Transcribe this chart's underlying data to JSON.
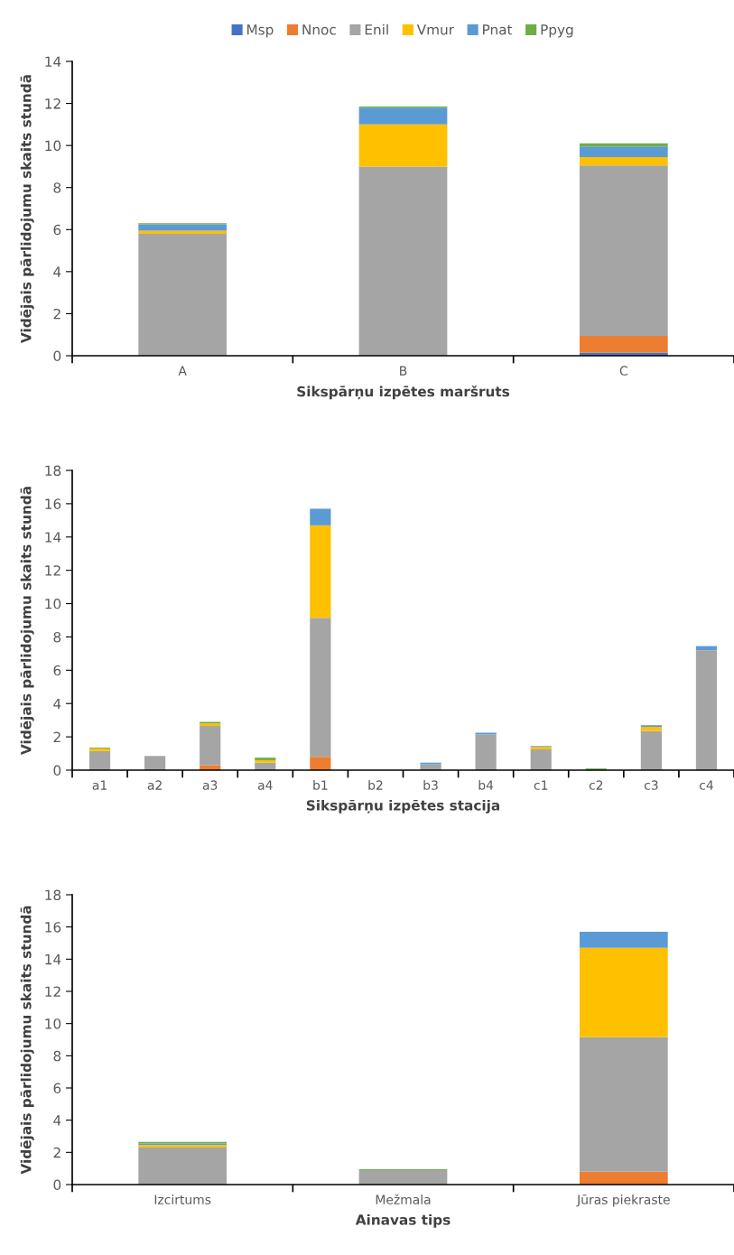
{
  "chart_data": [
    {
      "type": "bar",
      "stacked": true,
      "legend": "top",
      "grid": false,
      "ylabel": "Vidējais pārlidojumu skaits stundā",
      "xlabel": "Sikspārņu izpētes maršruts",
      "categories": [
        "A",
        "B",
        "C"
      ],
      "ylim": [
        0,
        14
      ],
      "yticks": [
        0,
        2,
        4,
        6,
        8,
        10,
        12,
        14
      ],
      "series": [
        {
          "name": "Msp",
          "color": "#4472c4",
          "values": [
            0,
            0,
            0.15
          ]
        },
        {
          "name": "Nnoc",
          "color": "#ed7d31",
          "values": [
            0,
            0,
            0.8
          ]
        },
        {
          "name": "Enil",
          "color": "#a5a5a5",
          "values": [
            5.8,
            9.0,
            8.1
          ]
        },
        {
          "name": "Vmur",
          "color": "#ffc000",
          "values": [
            0.15,
            2.0,
            0.4
          ]
        },
        {
          "name": "Pnat",
          "color": "#5b9bd5",
          "values": [
            0.3,
            0.8,
            0.5
          ]
        },
        {
          "name": "Ppyg",
          "color": "#70ad47",
          "values": [
            0.05,
            0.05,
            0.15
          ]
        }
      ]
    },
    {
      "type": "bar",
      "stacked": true,
      "grid": false,
      "ylabel": "Vidējais pārlidojumu skaits stundā",
      "xlabel": "Sikspārņu izpētes stacija",
      "categories": [
        "a1",
        "a2",
        "a3",
        "a4",
        "b1",
        "b2",
        "b3",
        "b4",
        "c1",
        "c2",
        "c3",
        "c4"
      ],
      "ylim": [
        0,
        18
      ],
      "yticks": [
        0,
        2,
        4,
        6,
        8,
        10,
        12,
        14,
        16,
        18
      ],
      "series": [
        {
          "color": "#4472c4",
          "values": [
            0,
            0,
            0,
            0,
            0,
            0,
            0,
            0,
            0,
            0,
            0,
            0
          ]
        },
        {
          "color": "#ed7d31",
          "values": [
            0,
            0,
            0.3,
            0,
            0.8,
            0,
            0,
            0,
            0,
            0,
            0,
            0
          ]
        },
        {
          "color": "#a5a5a5",
          "values": [
            1.15,
            0.85,
            2.35,
            0.45,
            8.35,
            0,
            0.35,
            2.15,
            1.25,
            0,
            2.35,
            7.2
          ]
        },
        {
          "color": "#ffc000",
          "values": [
            0.15,
            0,
            0.15,
            0.15,
            5.55,
            0,
            0,
            0,
            0.15,
            0,
            0.25,
            0
          ]
        },
        {
          "color": "#5b9bd5",
          "values": [
            0,
            0,
            0,
            0,
            1.0,
            0,
            0.1,
            0.1,
            0.05,
            0,
            0.1,
            0.25
          ]
        },
        {
          "color": "#70ad47",
          "values": [
            0.05,
            0,
            0.1,
            0.15,
            0,
            0,
            0,
            0,
            0,
            0.1,
            0,
            0
          ]
        }
      ]
    },
    {
      "type": "bar",
      "stacked": true,
      "grid": false,
      "ylabel": "Vidējais pārlidojumu skaits stundā",
      "xlabel": "Ainavas tips",
      "categories": [
        "Izcirtums",
        "Mežmala",
        "Jūras piekraste"
      ],
      "ylim": [
        0,
        18
      ],
      "yticks": [
        0,
        2,
        4,
        6,
        8,
        10,
        12,
        14,
        16,
        18
      ],
      "series": [
        {
          "color": "#4472c4",
          "values": [
            0,
            0,
            0
          ]
        },
        {
          "color": "#ed7d31",
          "values": [
            0,
            0,
            0.8
          ]
        },
        {
          "color": "#a5a5a5",
          "values": [
            2.3,
            0.9,
            8.35
          ]
        },
        {
          "color": "#ffc000",
          "values": [
            0.15,
            0,
            5.55
          ]
        },
        {
          "color": "#5b9bd5",
          "values": [
            0.1,
            0,
            1.0
          ]
        },
        {
          "color": "#70ad47",
          "values": [
            0.1,
            0.05,
            0
          ]
        }
      ]
    }
  ]
}
